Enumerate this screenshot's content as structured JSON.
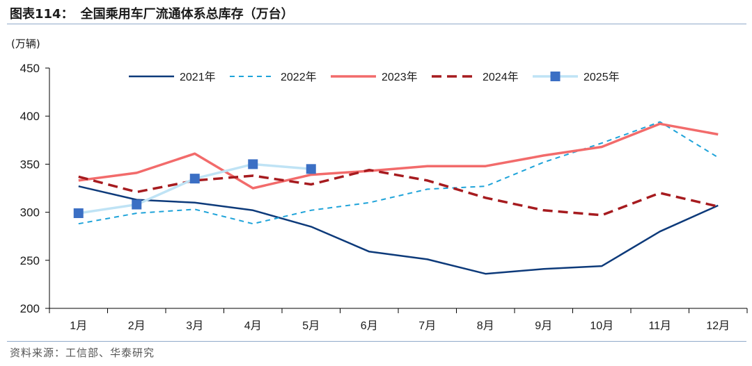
{
  "header": {
    "figure_no": "图表114：",
    "title": "全国乘用车厂流通体系总库存（万台）"
  },
  "unit_label": "(万辆)",
  "source": "资料来源：工信部、华泰研究",
  "chart_data": {
    "type": "line",
    "title": "全国乘用车厂流通体系总库存（万台）",
    "xlabel": "",
    "ylabel": "(万辆)",
    "ylim": [
      200,
      450
    ],
    "yticks": [
      200,
      250,
      300,
      350,
      400,
      450
    ],
    "categories": [
      "1月",
      "2月",
      "3月",
      "4月",
      "5月",
      "6月",
      "7月",
      "8月",
      "9月",
      "10月",
      "11月",
      "12月"
    ],
    "legend_position": "top",
    "series": [
      {
        "name": "2021年",
        "color": "#0d3a7a",
        "style": "solid",
        "width": 2.5,
        "marker": "none",
        "values": [
          327,
          313,
          310,
          302,
          285,
          259,
          251,
          236,
          241,
          244,
          280,
          307
        ]
      },
      {
        "name": "2022年",
        "color": "#1ea3d9",
        "style": "dash",
        "width": 2,
        "marker": "none",
        "values": [
          288,
          299,
          303,
          288,
          302,
          310,
          324,
          327,
          352,
          372,
          394,
          357
        ]
      },
      {
        "name": "2023年",
        "color": "#f26b6b",
        "style": "solid",
        "width": 3.5,
        "marker": "none",
        "values": [
          333,
          341,
          361,
          325,
          339,
          343,
          348,
          348,
          359,
          368,
          392,
          381
        ]
      },
      {
        "name": "2024年",
        "color": "#a61b1f",
        "style": "longdash",
        "width": 3.5,
        "marker": "none",
        "values": [
          337,
          321,
          333,
          338,
          329,
          344,
          333,
          315,
          302,
          297,
          320,
          306
        ]
      },
      {
        "name": "2025年",
        "color": "#bfe3f5",
        "style": "solid",
        "width": 3.5,
        "marker": "square",
        "marker_color": "#3b6fc4",
        "values": [
          299,
          308,
          335,
          350,
          345,
          null,
          null,
          null,
          null,
          null,
          null,
          null
        ]
      }
    ]
  }
}
